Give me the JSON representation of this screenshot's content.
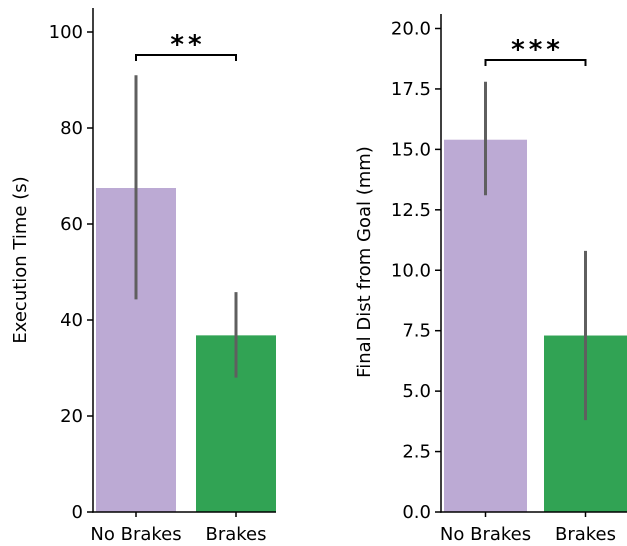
{
  "chart_data": [
    {
      "type": "bar",
      "categories": [
        "No Brakes",
        "Brakes"
      ],
      "values": [
        67.5,
        36.8
      ],
      "error_low": [
        44.3,
        28.0
      ],
      "error_high": [
        91.0,
        45.8
      ],
      "colors": [
        "#bcaad4",
        "#31a354"
      ],
      "ylabel": "Execution Time (s)",
      "ylim": [
        0,
        105
      ],
      "yticks": [
        0,
        20,
        40,
        60,
        80,
        100
      ],
      "ytick_labels": [
        "0",
        "20",
        "40",
        "60",
        "80",
        "100"
      ],
      "significance": "**",
      "grid": false
    },
    {
      "type": "bar",
      "categories": [
        "No Brakes",
        "Brakes"
      ],
      "values": [
        15.4,
        7.3
      ],
      "error_low": [
        13.1,
        3.8
      ],
      "error_high": [
        17.8,
        10.8
      ],
      "colors": [
        "#bcaad4",
        "#31a354"
      ],
      "ylabel": "Final Dist from Goal (mm)",
      "ylim": [
        0,
        20.6
      ],
      "yticks": [
        0,
        2.5,
        5,
        7.5,
        10,
        12.5,
        15,
        17.5,
        20
      ],
      "ytick_labels": [
        "0.0",
        "2.5",
        "5.0",
        "7.5",
        "10.0",
        "12.5",
        "15.0",
        "17.5",
        "20.0"
      ],
      "significance": "***",
      "grid": false
    }
  ]
}
